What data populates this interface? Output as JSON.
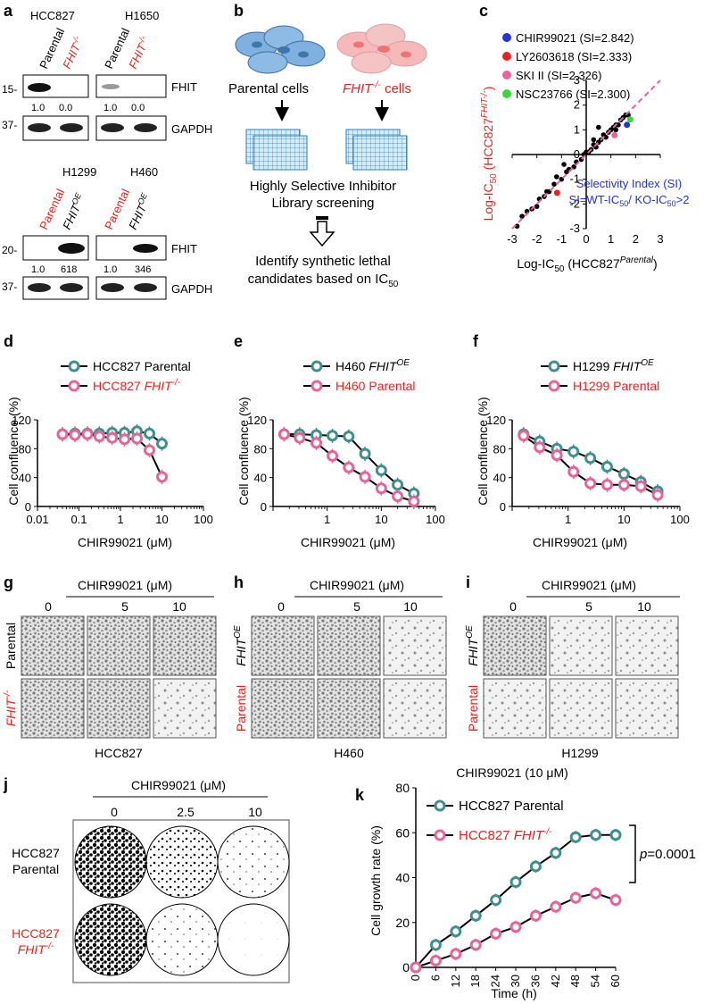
{
  "colors": {
    "teal": "#3f8f8f",
    "pink": "#e6649b",
    "red": "#e8231f",
    "blue": "#2233dd",
    "black": "#000000",
    "grey": "#8a8a8a",
    "cell_blue": "#7fb0df",
    "cell_pink": "#ef8f8f"
  },
  "panel_a": {
    "label": "a",
    "top_left": {
      "cell_line": "HCC827",
      "lanes": [
        "Parental",
        "FHIT"
      ],
      "lane2_sup": "-/-",
      "fhit_quant": [
        "1.0",
        "0.0"
      ]
    },
    "top_right": {
      "cell_line": "H1650",
      "lanes": [
        "Parental",
        "FHIT"
      ],
      "lane2_sup": "-/-",
      "fhit_quant": [
        "1.0",
        "0.0"
      ]
    },
    "bottom_left": {
      "cell_line": "H1299",
      "lanes": [
        "Parental",
        "FHIT"
      ],
      "lane2_sup": "OE",
      "fhit_quant": [
        "1.0",
        "618"
      ]
    },
    "bottom_right": {
      "cell_line": "H460",
      "lanes": [
        "Parental",
        "FHIT"
      ],
      "lane2_sup": "OE",
      "fhit_quant": [
        "1.0",
        "346"
      ]
    },
    "protein_fhit": "FHIT",
    "protein_gapdh": "GAPDH",
    "mw_top_fhit": "15-",
    "mw_top_gapdh": "37-",
    "mw_bottom_fhit": "20-",
    "mw_bottom_gapdh": "37-"
  },
  "panel_b": {
    "label": "b",
    "left_label": "Parental cells",
    "right_label_gene": "FHIT",
    "right_label_sup": "-/-",
    "right_label_rest": " cells",
    "screen_line1": "Highly Selective Inhibitor",
    "screen_line2": "Library screening",
    "result_line1": "Identify synthetic lethal",
    "result_line2": "candidates based on IC",
    "result_sub": "50"
  },
  "panel_c": {
    "label": "c",
    "legend": [
      {
        "name": "CHIR99021 (SI=2.842)",
        "color": "#2233dd"
      },
      {
        "name": "LY2603618 (SI=2.333)",
        "color": "#e8231f"
      },
      {
        "name": "SKI II (SI=2.326)",
        "color": "#e6649b"
      },
      {
        "name": "NSC23766 (SI=2.300)",
        "color": "#38d838"
      }
    ],
    "ylabel": "Log-IC50 (HCC827 FHIT-/-)",
    "xlabel": "Log-IC50 (HCC827 Parental)",
    "annotation_line1": "Selectivity Index (SI)",
    "annotation_line2": "SI=WT-IC50/ KO-IC50>2",
    "chart_data": {
      "type": "scatter",
      "xlim": [
        -3,
        3
      ],
      "ylim": [
        -3,
        3
      ],
      "ticks": [
        "-3",
        "-2",
        "-1",
        "0",
        "1",
        "2",
        "3"
      ],
      "black_points": [
        [
          -2.8,
          -2.9
        ],
        [
          -2.6,
          -2.5
        ],
        [
          -2.4,
          -2.3
        ],
        [
          -2.2,
          -2.2
        ],
        [
          -2.0,
          -2.1
        ],
        [
          -1.9,
          -1.8
        ],
        [
          -1.7,
          -1.7
        ],
        [
          -1.5,
          -1.5
        ],
        [
          -1.3,
          -1.2
        ],
        [
          -1.2,
          -0.9
        ],
        [
          -1.0,
          -1.0
        ],
        [
          -0.8,
          -0.7
        ],
        [
          -0.7,
          -0.6
        ],
        [
          -0.5,
          -0.5
        ],
        [
          -0.4,
          -0.3
        ],
        [
          -0.2,
          -0.2
        ],
        [
          -0.1,
          0.0
        ],
        [
          0.1,
          0.1
        ],
        [
          0.2,
          0.2
        ],
        [
          0.3,
          0.4
        ],
        [
          0.4,
          0.3
        ],
        [
          0.5,
          0.5
        ],
        [
          0.6,
          0.6
        ],
        [
          0.7,
          0.8
        ],
        [
          0.8,
          0.7
        ],
        [
          0.9,
          0.9
        ],
        [
          1.0,
          1.0
        ],
        [
          1.1,
          1.1
        ],
        [
          1.2,
          1.2
        ],
        [
          1.3,
          1.2
        ],
        [
          1.4,
          1.4
        ],
        [
          1.5,
          1.5
        ],
        [
          1.6,
          1.6
        ],
        [
          1.7,
          1.6
        ],
        [
          0.5,
          1.1
        ],
        [
          -0.9,
          -0.4
        ],
        [
          0.0,
          0.1
        ],
        [
          0.3,
          0.6
        ],
        [
          1.2,
          1.0
        ],
        [
          -1.6,
          -1.5
        ]
      ],
      "highlighted": [
        {
          "name": "CHIR99021",
          "x": 1.65,
          "y": 1.2,
          "color": "#2233dd"
        },
        {
          "name": "LY2603618",
          "x": -1.18,
          "y": -1.55,
          "color": "#e8231f"
        },
        {
          "name": "SKI II",
          "x": 1.15,
          "y": 0.78,
          "color": "#e6649b"
        },
        {
          "name": "NSC23766",
          "x": 1.78,
          "y": 1.42,
          "color": "#38d838"
        }
      ]
    }
  },
  "panel_d": {
    "label": "d",
    "series_names": [
      "HCC827 Parental",
      "HCC827 FHIT-/-"
    ],
    "legend1": "HCC827 Parental",
    "legend2_text": "HCC827 ",
    "legend2_gene": "FHIT",
    "legend2_sup": "-/-",
    "ylabel": "Cell confluence (%)",
    "xlabel": "CHIR99021 (μM)",
    "xticks": [
      "0.01",
      "0.1",
      "1",
      "10",
      "100"
    ],
    "yticks": [
      "0",
      "40",
      "80",
      "120"
    ],
    "chart_data": {
      "type": "line",
      "xscale": "log",
      "xlim": [
        0.01,
        100
      ],
      "ylim": [
        0,
        120
      ],
      "x": [
        0.04,
        0.08,
        0.16,
        0.31,
        0.63,
        1.25,
        2.5,
        5,
        10
      ],
      "series": [
        {
          "name": "HCC827 Parental",
          "values": [
            100,
            101,
            101,
            101,
            102,
            102,
            104,
            101,
            87
          ],
          "color": "#3f8f8f"
        },
        {
          "name": "HCC827 FHIT-/-",
          "values": [
            100,
            99,
            100,
            97,
            95,
            93,
            94,
            78,
            41
          ],
          "color": "#e6649b"
        }
      ]
    }
  },
  "panel_e": {
    "label": "e",
    "legend1_text": "H460 ",
    "legend1_gene": "FHIT",
    "legend1_sup": "OE",
    "legend2": "H460 Parental",
    "ylabel": "Cell confluence (%)",
    "xlabel": "CHIR99021 (μM)",
    "xticks": [
      "1",
      "10",
      "100"
    ],
    "yticks": [
      "0",
      "40",
      "80",
      "120"
    ],
    "chart_data": {
      "type": "line",
      "xscale": "log",
      "xlim": [
        0.1,
        100
      ],
      "ylim": [
        0,
        120
      ],
      "x": [
        0.16,
        0.31,
        0.63,
        1.25,
        2.5,
        5,
        10,
        20,
        40
      ],
      "series": [
        {
          "name": "H460 FHIT OE",
          "values": [
            100,
            100,
            99,
            98,
            97,
            73,
            50,
            30,
            18
          ],
          "color": "#3f8f8f"
        },
        {
          "name": "H460 Parental",
          "values": [
            100,
            95,
            88,
            70,
            54,
            41,
            25,
            14,
            7
          ],
          "color": "#e6649b"
        }
      ]
    }
  },
  "panel_f": {
    "label": "f",
    "legend1_text": "H1299 ",
    "legend1_gene": "FHIT",
    "legend1_sup": "OE",
    "legend2": "H1299 Parental",
    "ylabel": "Cell confluence (%)",
    "xlabel": "CHIR99021 (μM)",
    "xticks": [
      "1",
      "10",
      "100"
    ],
    "yticks": [
      "0",
      "40",
      "80",
      "120"
    ],
    "chart_data": {
      "type": "line",
      "xscale": "log",
      "xlim": [
        0.1,
        100
      ],
      "ylim": [
        0,
        120
      ],
      "x": [
        0.16,
        0.31,
        0.63,
        1.25,
        2.5,
        5,
        10,
        20,
        40
      ],
      "series": [
        {
          "name": "H1299 FHIT OE",
          "values": [
            100,
            90,
            80,
            76,
            67,
            55,
            45,
            34,
            21
          ],
          "color": "#3f8f8f"
        },
        {
          "name": "H1299 Parental",
          "values": [
            98,
            82,
            71,
            48,
            32,
            30,
            30,
            28,
            16
          ],
          "color": "#e6649b"
        }
      ]
    }
  },
  "panel_g": {
    "label": "g",
    "header": "CHIR99021 (μM)",
    "conc": [
      "0",
      "5",
      "10"
    ],
    "row1": "Parental",
    "row2_gene": "FHIT",
    "row2_sup": "-/-",
    "caption": "HCC827"
  },
  "panel_h": {
    "label": "h",
    "header": "CHIR99021 (μM)",
    "conc": [
      "0",
      "5",
      "10"
    ],
    "row1_gene": "FHIT",
    "row1_sup": "OE",
    "row2": "Parental",
    "caption": "H460"
  },
  "panel_i": {
    "label": "i",
    "header": "CHIR99021 (μM)",
    "conc": [
      "0",
      "5",
      "10"
    ],
    "row1_gene": "FHIT",
    "row1_sup": "OE",
    "row2": "Parental",
    "caption": "H1299"
  },
  "panel_j": {
    "label": "j",
    "header": "CHIR99021 (μM)",
    "conc": [
      "0",
      "2.5",
      "10"
    ],
    "row1_a": "HCC827",
    "row1_b": "Parental",
    "row2_a": "HCC827",
    "row2_gene": "FHIT",
    "row2_sup": "-/-"
  },
  "panel_k": {
    "label": "k",
    "title": "CHIR99021 (10 μM)",
    "legend1": "HCC827 Parental",
    "legend2_text": "HCC827 ",
    "legend2_gene": "FHIT",
    "legend2_sup": "-/-",
    "ylabel": "Cell growth rate (%)",
    "xlabel": "Time (h)",
    "pvalue_p": "p",
    "pvalue_rest": "=0.0001",
    "xticks": [
      "0",
      "6",
      "12",
      "18",
      "24",
      "30",
      "36",
      "42",
      "48",
      "54",
      "60"
    ],
    "yticks": [
      "0",
      "20",
      "40",
      "60",
      "80"
    ],
    "chart_data": {
      "type": "line",
      "xlim": [
        0,
        60
      ],
      "ylim": [
        0,
        80
      ],
      "x": [
        0,
        6,
        12,
        18,
        24,
        30,
        36,
        42,
        48,
        54,
        60
      ],
      "series": [
        {
          "name": "HCC827 Parental",
          "values": [
            0,
            10,
            16,
            23,
            30,
            38,
            45,
            51,
            58,
            59,
            59
          ],
          "color": "#3f8f8f"
        },
        {
          "name": "HCC827 FHIT-/-",
          "values": [
            0,
            3,
            6,
            10,
            15,
            18,
            23,
            27,
            31,
            33,
            30
          ],
          "color": "#e6649b"
        }
      ]
    }
  }
}
